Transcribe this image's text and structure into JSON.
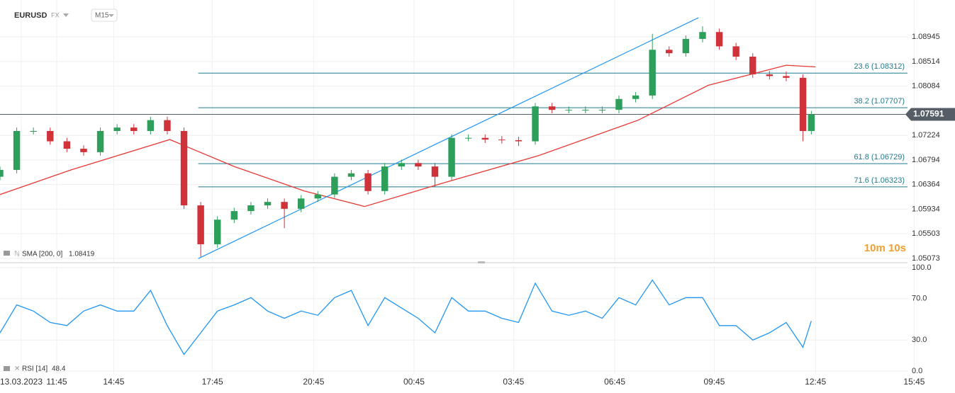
{
  "chart_data": [
    {
      "type": "candlestick",
      "title": "EURUSD",
      "subtitle": "FX",
      "timeframe": "M15",
      "x": [
        0,
        2,
        4,
        6,
        8,
        10,
        12,
        14,
        16,
        18,
        20,
        22,
        24,
        26,
        28,
        30,
        32,
        34,
        36,
        38,
        40,
        42,
        44,
        46,
        48,
        50,
        52,
        54,
        56,
        58,
        60,
        62,
        64,
        66,
        68,
        70,
        72,
        74,
        76,
        78,
        80,
        82,
        84,
        86,
        88,
        90,
        92,
        94,
        96,
        97
      ],
      "open": [
        1.065,
        1.0662,
        1.073,
        1.073,
        1.0712,
        1.0699,
        1.0693,
        1.073,
        1.0736,
        1.073,
        1.0749,
        1.073,
        1.06,
        1.0532,
        1.0575,
        1.059,
        1.06,
        1.0606,
        1.0594,
        1.0612,
        1.0619,
        1.065,
        1.0656,
        1.0625,
        1.0668,
        1.0674,
        1.0668,
        1.065,
        1.0718,
        1.0718,
        1.0715,
        1.0714,
        1.0712,
        1.0773,
        1.0767,
        1.0767,
        1.0767,
        1.0767,
        1.0786,
        1.0792,
        1.0872,
        1.0866,
        1.0891,
        1.0903,
        1.0878,
        1.086,
        1.0829,
        1.0826,
        1.0823,
        1.073
      ],
      "high": [
        1.0668,
        1.0736,
        1.0736,
        1.0736,
        1.0718,
        1.0705,
        1.0736,
        1.0742,
        1.0742,
        1.0755,
        1.0755,
        1.0736,
        1.0606,
        1.0581,
        1.0596,
        1.0606,
        1.0612,
        1.0612,
        1.0618,
        1.0625,
        1.0656,
        1.0662,
        1.0662,
        1.0674,
        1.068,
        1.068,
        1.0674,
        1.0724,
        1.0724,
        1.0724,
        1.0721,
        1.072,
        1.0779,
        1.0779,
        1.0773,
        1.0773,
        1.0773,
        1.0792,
        1.0798,
        1.09,
        1.0878,
        1.0897,
        1.0913,
        1.0909,
        1.0884,
        1.0866,
        1.0835,
        1.0834,
        1.0829,
        1.0765
      ],
      "low": [
        1.0644,
        1.0656,
        1.0724,
        1.0706,
        1.0693,
        1.0687,
        1.0687,
        1.0724,
        1.0724,
        1.0724,
        1.0724,
        1.0594,
        1.051,
        1.0526,
        1.0569,
        1.0584,
        1.0594,
        1.056,
        1.0588,
        1.0606,
        1.0613,
        1.0644,
        1.0619,
        1.0619,
        1.0662,
        1.0662,
        1.0632,
        1.0644,
        1.0712,
        1.0709,
        1.0708,
        1.0704,
        1.0706,
        1.0761,
        1.0761,
        1.0761,
        1.0761,
        1.0761,
        1.078,
        1.0786,
        1.086,
        1.086,
        1.0885,
        1.0872,
        1.0854,
        1.0823,
        1.082,
        1.0817,
        1.0712,
        1.0724
      ],
      "close": [
        1.0662,
        1.073,
        1.073,
        1.0712,
        1.0699,
        1.0693,
        1.073,
        1.0736,
        1.073,
        1.0749,
        1.073,
        1.06,
        1.0532,
        1.0575,
        1.059,
        1.06,
        1.0606,
        1.0594,
        1.0612,
        1.0619,
        1.065,
        1.0656,
        1.0625,
        1.0668,
        1.0674,
        1.0668,
        1.065,
        1.0718,
        1.0718,
        1.0715,
        1.0714,
        1.0712,
        1.0773,
        1.0767,
        1.0767,
        1.0767,
        1.0767,
        1.0786,
        1.0792,
        1.0872,
        1.0866,
        1.0891,
        1.0903,
        1.0878,
        1.086,
        1.0829,
        1.0826,
        1.0823,
        1.073,
        1.0759
      ],
      "up_color": "#2e9e5b",
      "down_color": "#d0323a",
      "xlim": [
        0,
        108.5
      ],
      "ylim": [
        1.0501,
        1.0959
      ],
      "yticks": [
        1.05073,
        1.05503,
        1.05934,
        1.06364,
        1.06794,
        1.07224,
        1.08084,
        1.08514,
        1.08945
      ],
      "grid": true,
      "sma": {
        "label": "SMA [200, 0]",
        "value": 1.08419,
        "color": "#e53935",
        "x": [
          0,
          8.5,
          20.3,
          28,
          36.4,
          43.6,
          52.5,
          64.4,
          76.3,
          84.7,
          94,
          97.5
        ],
        "values": [
          1.0619,
          1.0662,
          1.0715,
          1.0668,
          1.0625,
          1.0598,
          1.0637,
          1.0687,
          1.0749,
          1.081,
          1.0845,
          1.0842
        ]
      },
      "trendline": {
        "color": "#2196f3",
        "x": [
          23.7,
          83.5
        ],
        "values": [
          1.0507,
          1.0928
        ]
      },
      "fib_levels": {
        "color": "#1f7a8c",
        "x_start": 23.7,
        "levels": [
          {
            "label": "23.6 (1.08312)",
            "value": 1.08312
          },
          {
            "label": "38.2 (1.07707)",
            "value": 1.07707
          },
          {
            "label": "61.8 (1.06729)",
            "value": 1.06729
          },
          {
            "label": "71.6 (1.06323)",
            "value": 1.06323
          }
        ]
      },
      "last_price": {
        "value": 1.07591,
        "color": "#555e66"
      },
      "countdown": "10m 10s"
    },
    {
      "type": "line",
      "x": [
        0,
        2,
        4,
        6,
        8,
        10,
        12,
        14,
        16,
        18,
        20,
        22,
        24,
        26,
        28,
        30,
        32,
        34,
        36,
        38,
        40,
        42,
        44,
        46,
        48,
        50,
        52,
        54,
        56,
        58,
        60,
        62,
        64,
        66,
        68,
        70,
        72,
        74,
        76,
        78,
        80,
        82,
        84,
        86,
        88,
        90,
        92,
        94,
        96,
        97
      ],
      "series": [
        {
          "name": "RSI [14]",
          "color": "#2196f3",
          "values": [
            37,
            64,
            58,
            47,
            44,
            58,
            64,
            58,
            58,
            78,
            44,
            16,
            37,
            58,
            64,
            71,
            58,
            51,
            58,
            54,
            71,
            78,
            44,
            71,
            61,
            51,
            37,
            71,
            58,
            58,
            51,
            47,
            85,
            58,
            54,
            58,
            51,
            71,
            64,
            88,
            64,
            71,
            71,
            44,
            44,
            30,
            37,
            47,
            23,
            48.4
          ]
        }
      ],
      "current_value": 48.4,
      "xlim": [
        0,
        108.5
      ],
      "ylim": [
        0,
        100
      ],
      "yticks": [
        {
          "value": 0,
          "label": "0.0"
        },
        {
          "value": 30,
          "label": "30.0"
        },
        {
          "value": 70,
          "label": "70.0"
        },
        {
          "value": 100,
          "label": "100.0"
        }
      ],
      "xticks": [
        {
          "value": 2.54,
          "label": "13.03.2023"
        },
        {
          "value": 6.78,
          "label": "11:45"
        },
        {
          "value": 13.6,
          "label": "14:45"
        },
        {
          "value": 25.4,
          "label": "17:45"
        },
        {
          "value": 37.5,
          "label": "20:45"
        },
        {
          "value": 49.5,
          "label": "00:45"
        },
        {
          "value": 61.4,
          "label": "03:45"
        },
        {
          "value": 73.5,
          "label": "06:45"
        },
        {
          "value": 85.4,
          "label": "09:45"
        },
        {
          "value": 97.5,
          "label": "12:45"
        },
        {
          "value": 109.3,
          "label": "15:45"
        }
      ],
      "grid": true
    }
  ]
}
